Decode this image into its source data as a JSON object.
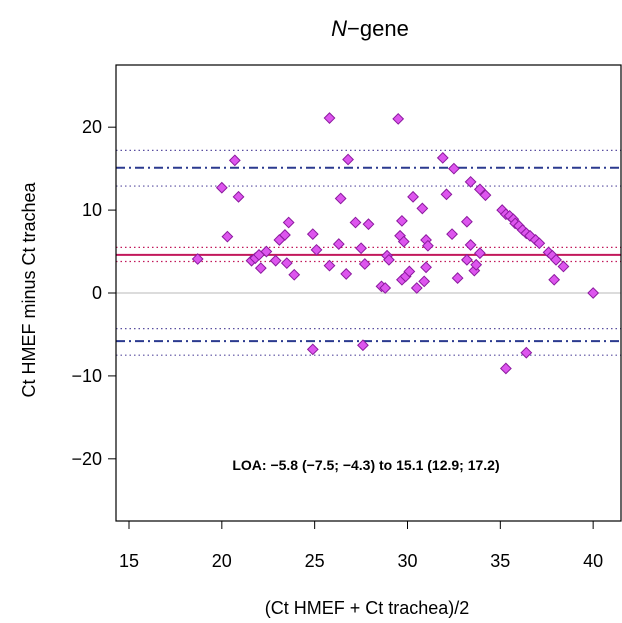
{
  "chart_data": {
    "type": "scatter",
    "title_italic": "N",
    "title_rest": "−gene",
    "xlabel": "(Ct HMEF + Ct trachea)/2",
    "ylabel": "Ct HMEF minus Ct trachea",
    "xlim": [
      14.3,
      41.5
    ],
    "ylim": [
      -27.5,
      27.5
    ],
    "xticks": [
      15,
      20,
      25,
      30,
      35,
      40
    ],
    "yticks": [
      -20,
      -10,
      0,
      10,
      20
    ],
    "annotation": "LOA: −5.8 (−7.5; −4.3) to 15.1 (12.9; 17.2)",
    "reference_lines": {
      "zero": 0,
      "mean_bias": 4.6,
      "mean_bias_ci": [
        3.8,
        5.5
      ],
      "upper_loa": 15.1,
      "upper_loa_ci": [
        12.9,
        17.2
      ],
      "lower_loa": -5.8,
      "lower_loa_ci": [
        -7.5,
        -4.3
      ]
    },
    "colors": {
      "point_fill": "#dd55ee",
      "point_stroke": "#8b1a9e",
      "mean_line": "#c2185b",
      "loa_line": "#2b3a8f",
      "ci_dotted": "#5a4fa0",
      "zero_line": "#c8c8c8"
    },
    "points": [
      [
        18.7,
        4.1
      ],
      [
        20.0,
        12.7
      ],
      [
        20.3,
        6.8
      ],
      [
        20.7,
        16.0
      ],
      [
        20.9,
        11.6
      ],
      [
        21.6,
        3.9
      ],
      [
        21.8,
        4.2
      ],
      [
        22.0,
        4.6
      ],
      [
        22.1,
        3.0
      ],
      [
        22.4,
        5.0
      ],
      [
        22.9,
        3.9
      ],
      [
        23.1,
        6.4
      ],
      [
        23.4,
        7.0
      ],
      [
        23.5,
        3.6
      ],
      [
        23.6,
        8.5
      ],
      [
        23.9,
        2.2
      ],
      [
        24.9,
        7.1
      ],
      [
        24.9,
        -6.8
      ],
      [
        25.1,
        5.2
      ],
      [
        25.8,
        21.1
      ],
      [
        25.8,
        3.3
      ],
      [
        26.3,
        5.9
      ],
      [
        26.4,
        11.4
      ],
      [
        26.7,
        2.3
      ],
      [
        26.8,
        16.1
      ],
      [
        27.2,
        8.5
      ],
      [
        27.5,
        5.4
      ],
      [
        27.6,
        -6.3
      ],
      [
        27.7,
        3.5
      ],
      [
        27.9,
        8.3
      ],
      [
        28.6,
        0.8
      ],
      [
        28.8,
        0.6
      ],
      [
        28.9,
        4.5
      ],
      [
        29.0,
        4.0
      ],
      [
        29.5,
        21.0
      ],
      [
        29.6,
        6.9
      ],
      [
        29.7,
        8.7
      ],
      [
        29.7,
        1.6
      ],
      [
        29.8,
        6.2
      ],
      [
        29.9,
        2.0
      ],
      [
        30.1,
        2.6
      ],
      [
        30.3,
        11.6
      ],
      [
        30.5,
        0.6
      ],
      [
        30.8,
        10.2
      ],
      [
        30.9,
        1.4
      ],
      [
        31.0,
        6.4
      ],
      [
        31.0,
        3.1
      ],
      [
        31.1,
        5.7
      ],
      [
        31.9,
        16.3
      ],
      [
        32.1,
        11.9
      ],
      [
        32.4,
        7.1
      ],
      [
        32.5,
        15.0
      ],
      [
        32.7,
        1.8
      ],
      [
        33.2,
        4.0
      ],
      [
        33.2,
        8.6
      ],
      [
        33.4,
        13.4
      ],
      [
        33.4,
        5.8
      ],
      [
        33.6,
        2.7
      ],
      [
        33.7,
        3.4
      ],
      [
        33.9,
        12.5
      ],
      [
        33.9,
        4.8
      ],
      [
        34.2,
        11.8
      ],
      [
        35.1,
        10.0
      ],
      [
        35.3,
        9.5
      ],
      [
        35.3,
        -9.1
      ],
      [
        35.5,
        9.3
      ],
      [
        35.7,
        8.9
      ],
      [
        35.8,
        8.4
      ],
      [
        36.0,
        8.1
      ],
      [
        36.2,
        7.6
      ],
      [
        36.4,
        7.2
      ],
      [
        36.4,
        -7.2
      ],
      [
        36.6,
        6.9
      ],
      [
        36.9,
        6.4
      ],
      [
        37.1,
        6.0
      ],
      [
        37.6,
        4.9
      ],
      [
        37.8,
        4.5
      ],
      [
        38.0,
        4.0
      ],
      [
        37.9,
        1.6
      ],
      [
        38.4,
        3.2
      ],
      [
        40.0,
        0.0
      ]
    ]
  }
}
